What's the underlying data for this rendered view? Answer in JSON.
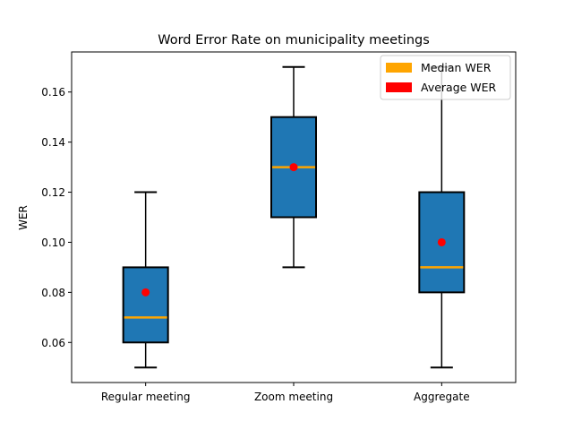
{
  "chart_data": {
    "type": "box",
    "title": "Word Error Rate on municipality meetings",
    "xlabel": "",
    "ylabel": "WER",
    "ylim": [
      0.044,
      0.176
    ],
    "yticks": [
      0.06,
      0.08,
      0.1,
      0.12,
      0.14,
      0.16
    ],
    "ytick_labels": [
      "0.06",
      "0.08",
      "0.10",
      "0.12",
      "0.14",
      "0.16"
    ],
    "categories": [
      "Regular meeting",
      "Zoom meeting",
      "Aggregate"
    ],
    "boxes": [
      {
        "whisker_low": 0.05,
        "q1": 0.06,
        "median": 0.07,
        "q3": 0.09,
        "whisker_high": 0.12,
        "mean": 0.08
      },
      {
        "whisker_low": 0.09,
        "q1": 0.11,
        "median": 0.13,
        "q3": 0.15,
        "whisker_high": 0.17,
        "mean": 0.13
      },
      {
        "whisker_low": 0.05,
        "q1": 0.08,
        "median": 0.09,
        "q3": 0.12,
        "whisker_high": 0.17,
        "mean": 0.1
      }
    ],
    "legend": {
      "placement": "top-right",
      "entries": [
        {
          "label": "Median WER",
          "color": "#ffa500"
        },
        {
          "label": "Average WER",
          "color": "#ff0000"
        }
      ]
    },
    "colors": {
      "box_fill": "#1f77b4",
      "median_line": "#ffa500",
      "mean_marker": "#ff0000"
    },
    "grid": false
  }
}
